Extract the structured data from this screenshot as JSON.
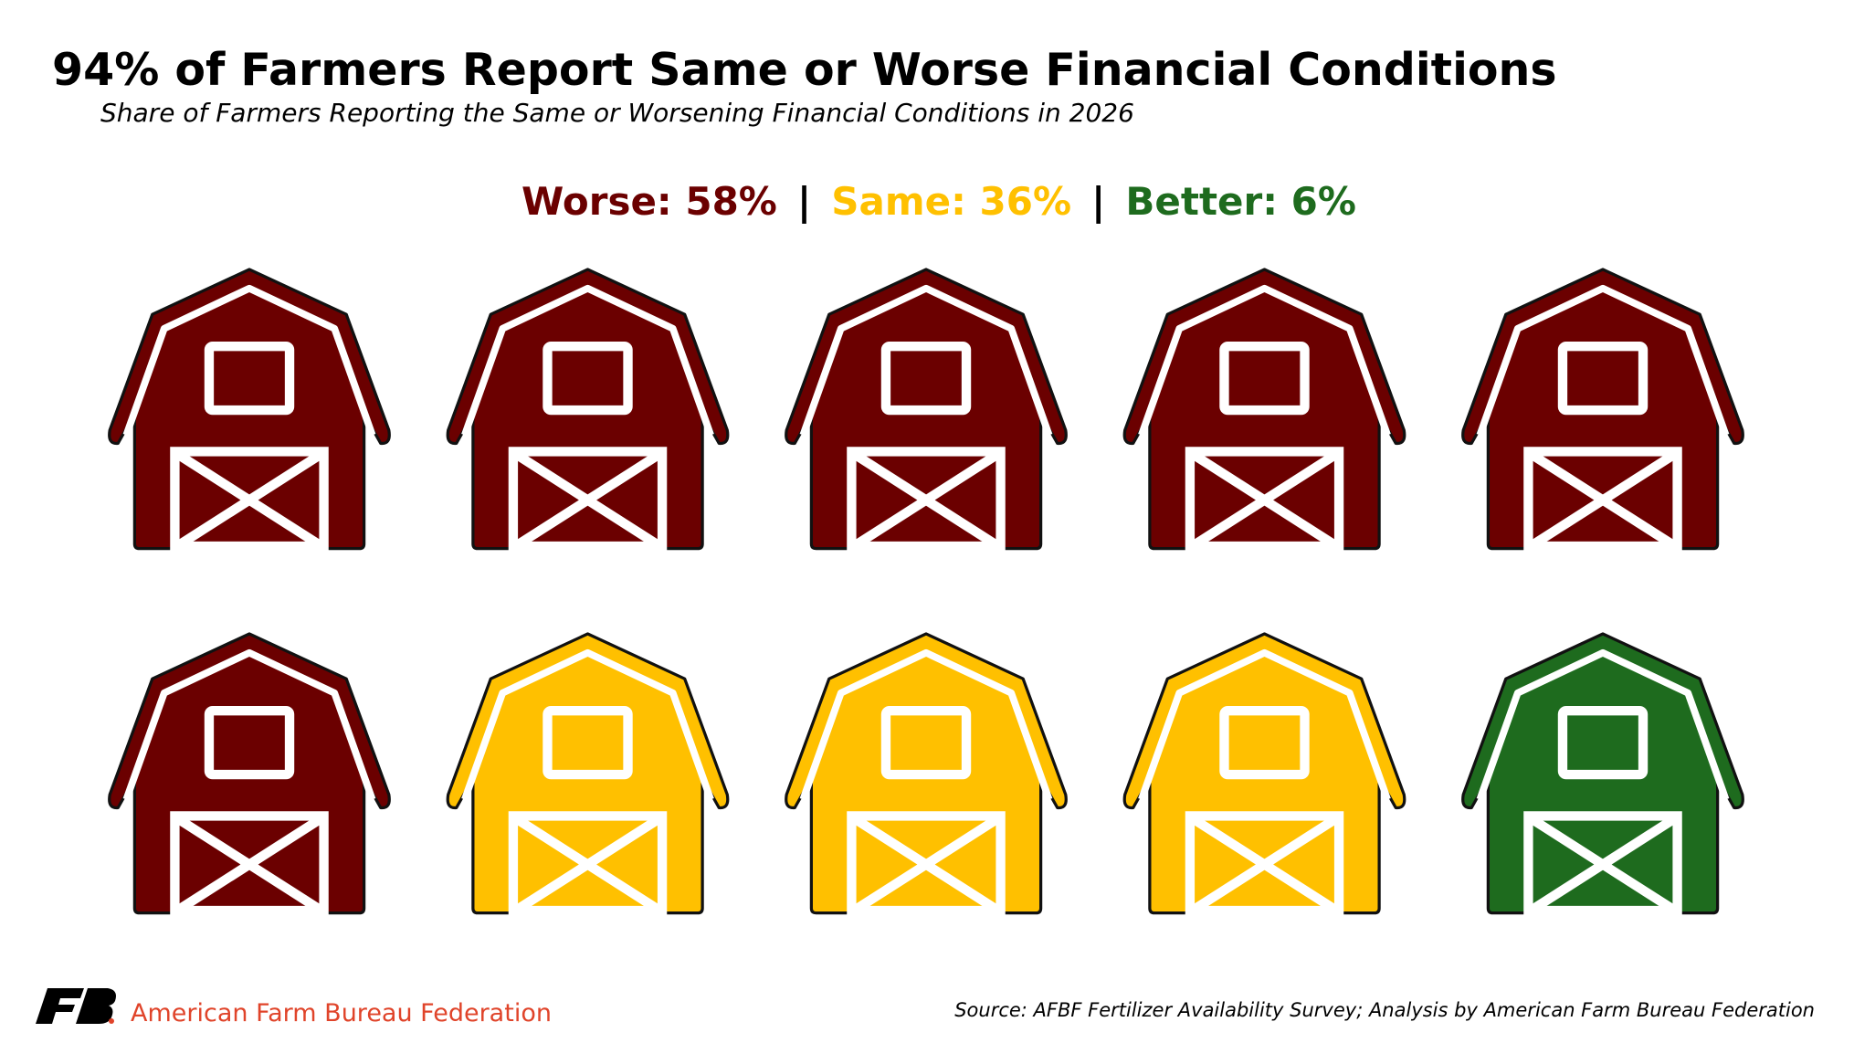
{
  "chart_data": {
    "type": "pictograph",
    "title": "94% of Farmers Report Same or Worse Financial Conditions",
    "subtitle": "Share of Farmers Reporting the Same or Worsening Financial Conditions in 2026",
    "values": [
      58,
      36,
      6
    ],
    "value_labels": [
      "Worse: 58%",
      "Same: 36%",
      "Better: 6%"
    ],
    "colors": [
      "#6b0000",
      "#ffc000",
      "#1e6b1e"
    ],
    "label_separator": "|",
    "organization": "American Farm Bureau Federation",
    "source": "Source: AFBF Fertilizer Availability Survey; Analysis by American Farm Bureau Federation"
  }
}
